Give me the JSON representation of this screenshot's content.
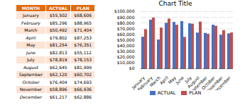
{
  "chart_data": {
    "type": "bar",
    "title": "Chart Title",
    "categories": [
      "January",
      "February",
      "March",
      "April",
      "May",
      "June",
      "July",
      "August",
      "September",
      "October",
      "November",
      "December"
    ],
    "series": [
      {
        "name": "ACTUAL",
        "color": "#4472C4",
        "values": [
          55502,
          85296,
          50492,
          79802,
          81254,
          82813,
          78819,
          62645,
          62120,
          76404,
          58896,
          61217
        ],
        "value_labels": [
          "$55,502",
          "$85,296",
          "$50,492",
          "$79,802",
          "$81,254",
          "$82,813",
          "$78,819",
          "$62,645",
          "$62,120",
          "$76,404",
          "$58,896",
          "$61,217"
        ]
      },
      {
        "name": "PLAN",
        "color": "#C0504D",
        "values": [
          68606,
          88965,
          71404,
          87253,
          76351,
          55112,
          78153,
          81999,
          60702,
          74693,
          66936,
          62886
        ],
        "value_labels": [
          "$68,606",
          "$88,965",
          "$71,404",
          "$87,253",
          "$76,351",
          "$55,112",
          "$78,153",
          "$81,999",
          "$60,702",
          "$74,693",
          "$66,936",
          "$62,886"
        ]
      }
    ],
    "ylim": [
      0,
      100000
    ],
    "yticks": [
      {
        "value": 0,
        "label": "$0"
      },
      {
        "value": 10000,
        "label": "$10,000"
      },
      {
        "value": 20000,
        "label": "$20,000"
      },
      {
        "value": 30000,
        "label": "$30,000"
      },
      {
        "value": 40000,
        "label": "$40,000"
      },
      {
        "value": 50000,
        "label": "$50,000"
      },
      {
        "value": 60000,
        "label": "$60,000"
      },
      {
        "value": 70000,
        "label": "$70,000"
      },
      {
        "value": 80000,
        "label": "$80,000"
      },
      {
        "value": 90000,
        "label": "$90,000"
      },
      {
        "value": 100000,
        "label": "$100,000"
      }
    ],
    "grid": true,
    "legend": "bottom",
    "table": {
      "columns": [
        "MONTH",
        "ACTUAL",
        "PLAN"
      ],
      "color": "#E26B0A",
      "colors": [
        "#FCE4D6",
        "#FFFFFF"
      ]
    }
  }
}
